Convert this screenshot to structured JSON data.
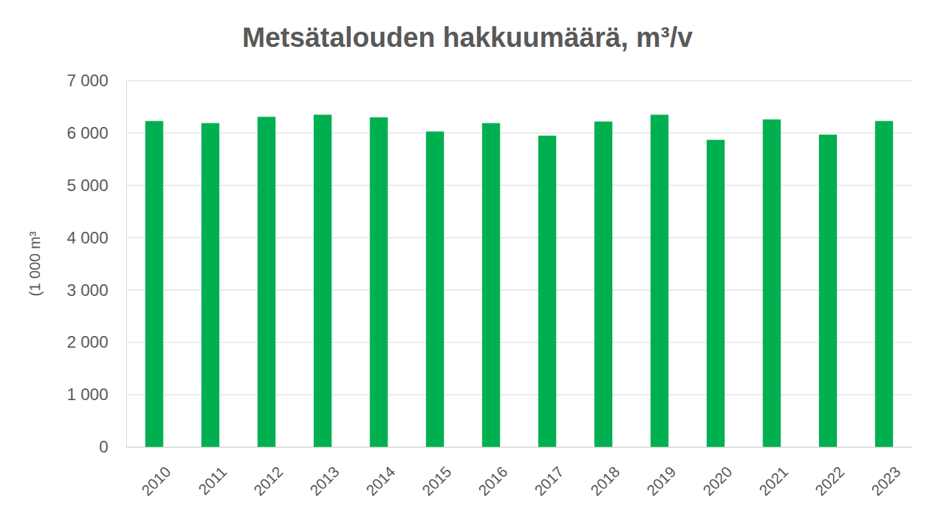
{
  "chart_data": {
    "type": "bar",
    "title": "Metsätalouden hakkuumäärä, m³/v",
    "y_label": "(1 000 m³",
    "categories": [
      "2010",
      "2011",
      "2012",
      "2013",
      "2014",
      "2015",
      "2016",
      "2017",
      "2018",
      "2019",
      "2020",
      "2021",
      "2022",
      "2023"
    ],
    "values": [
      6230,
      6190,
      6310,
      6350,
      6300,
      6030,
      6190,
      5950,
      6220,
      6350,
      5870,
      6260,
      5970,
      6230
    ],
    "color": "#00b050",
    "ylim": [
      0,
      7000
    ],
    "yticks": [
      0,
      {
        "value": 1000,
        "label": "1 000"
      },
      {
        "value": 2000,
        "label": "2 000"
      },
      {
        "value": 3000,
        "label": "3 000"
      },
      {
        "value": 4000,
        "label": "4 000"
      },
      {
        "value": 5000,
        "label": "5 000"
      },
      {
        "value": 6000,
        "label": "6 000"
      },
      {
        "value": 7000,
        "label": "7 000"
      }
    ],
    "grid": true
  }
}
